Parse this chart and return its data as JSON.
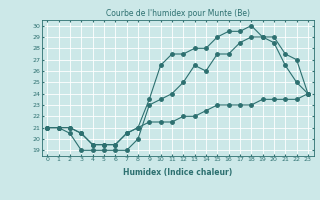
{
  "title": "Courbe de l'humidex pour Munte (Be)",
  "xlabel": "Humidex (Indice chaleur)",
  "xlim": [
    -0.5,
    23.5
  ],
  "ylim": [
    18.5,
    30.5
  ],
  "yticks": [
    19,
    20,
    21,
    22,
    23,
    24,
    25,
    26,
    27,
    28,
    29,
    30
  ],
  "xticks": [
    0,
    1,
    2,
    3,
    4,
    5,
    6,
    7,
    8,
    9,
    10,
    11,
    12,
    13,
    14,
    15,
    16,
    17,
    18,
    19,
    20,
    21,
    22,
    23
  ],
  "bg_color": "#cce8e8",
  "grid_color": "#ffffff",
  "line_color": "#2d7070",
  "line1_x": [
    0,
    1,
    2,
    3,
    4,
    5,
    6,
    7,
    8,
    9,
    10,
    11,
    12,
    13,
    14,
    15,
    16,
    17,
    18,
    19,
    20,
    21,
    22,
    23
  ],
  "line1_y": [
    21,
    21,
    20.5,
    19,
    19,
    19,
    19,
    19,
    20,
    23,
    23.5,
    24,
    25,
    26.5,
    26,
    27.5,
    27.5,
    28.5,
    29,
    29,
    28.5,
    26.5,
    25,
    24
  ],
  "line2_x": [
    0,
    1,
    2,
    3,
    4,
    5,
    6,
    7,
    8,
    9,
    10,
    11,
    12,
    13,
    14,
    15,
    16,
    17,
    18,
    19,
    20,
    21,
    22,
    23
  ],
  "line2_y": [
    21,
    21,
    21,
    20.5,
    19.5,
    19.5,
    19.5,
    20.5,
    21,
    23.5,
    26.5,
    27.5,
    27.5,
    28,
    28,
    29,
    29.5,
    29.5,
    30,
    29,
    29,
    27.5,
    27,
    24
  ],
  "line3_x": [
    0,
    1,
    2,
    3,
    4,
    5,
    6,
    7,
    8,
    9,
    10,
    11,
    12,
    13,
    14,
    15,
    16,
    17,
    18,
    19,
    20,
    21,
    22,
    23
  ],
  "line3_y": [
    21,
    21,
    21,
    20.5,
    19.5,
    19.5,
    19.5,
    20.5,
    21,
    21.5,
    21.5,
    21.5,
    22,
    22,
    22.5,
    23,
    23,
    23,
    23,
    23.5,
    23.5,
    23.5,
    23.5,
    24
  ]
}
